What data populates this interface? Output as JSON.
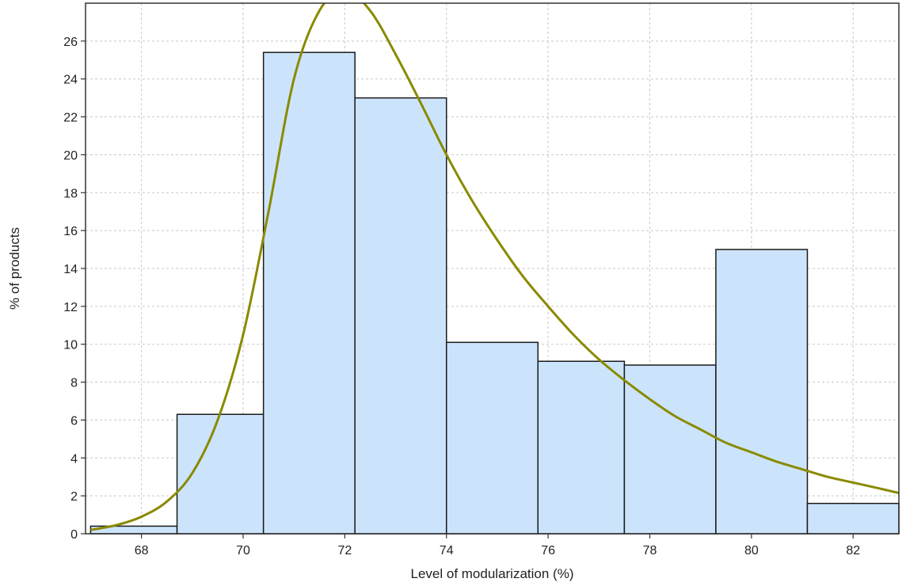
{
  "chart_data": {
    "type": "bar",
    "subtype": "histogram_with_fitted_curve",
    "title": "",
    "xlabel": "Level of modularization (%)",
    "ylabel": "% of products",
    "xlim": [
      66.9,
      82.9
    ],
    "ylim": [
      0,
      28
    ],
    "x_ticks": [
      68,
      70,
      72,
      74,
      76,
      78,
      80,
      82
    ],
    "y_ticks": [
      0,
      2,
      4,
      6,
      8,
      10,
      12,
      14,
      16,
      18,
      20,
      22,
      24,
      26
    ],
    "x_tick_labels": [
      "68",
      "70",
      "72",
      "74",
      "76",
      "78",
      "80",
      "82"
    ],
    "y_tick_labels": [
      "0",
      "2",
      "4",
      "6",
      "8",
      "10",
      "12",
      "14",
      "16",
      "18",
      "20",
      "22",
      "24",
      "26"
    ],
    "grid": true,
    "bins": [
      {
        "start": 67.0,
        "end": 68.7,
        "value": 0.4
      },
      {
        "start": 68.7,
        "end": 70.4,
        "value": 6.3
      },
      {
        "start": 70.4,
        "end": 72.2,
        "value": 25.4
      },
      {
        "start": 72.2,
        "end": 74.0,
        "value": 23.0
      },
      {
        "start": 74.0,
        "end": 75.8,
        "value": 10.1
      },
      {
        "start": 75.8,
        "end": 77.5,
        "value": 9.1
      },
      {
        "start": 77.5,
        "end": 79.3,
        "value": 8.9
      },
      {
        "start": 79.3,
        "end": 81.1,
        "value": 15.0
      },
      {
        "start": 81.1,
        "end": 82.9,
        "value": 1.6
      }
    ],
    "curve": {
      "x": [
        67.0,
        67.5,
        68.0,
        68.5,
        69.0,
        69.5,
        70.0,
        70.5,
        71.0,
        71.5,
        72.0,
        72.5,
        73.0,
        73.5,
        74.0,
        74.5,
        75.0,
        75.5,
        76.0,
        76.5,
        77.0,
        77.5,
        78.0,
        78.5,
        79.0,
        79.5,
        80.0,
        80.5,
        81.0,
        81.5,
        82.0,
        82.5,
        82.9
      ],
      "y": [
        0.2,
        0.45,
        0.9,
        1.7,
        3.2,
        6.0,
        10.5,
        17.0,
        24.0,
        27.6,
        28.7,
        27.6,
        25.3,
        22.7,
        20.0,
        17.6,
        15.5,
        13.6,
        12.0,
        10.5,
        9.2,
        8.1,
        7.1,
        6.2,
        5.5,
        4.8,
        4.3,
        3.8,
        3.4,
        3.0,
        2.7,
        2.4,
        2.15
      ],
      "color": "#8a8a00"
    },
    "colors": {
      "bar_fill": "#cce4fb",
      "bar_stroke": "#1a1a1a",
      "grid": "#c8c8c8",
      "axis": "#333333",
      "curve": "#8a8a00"
    }
  }
}
